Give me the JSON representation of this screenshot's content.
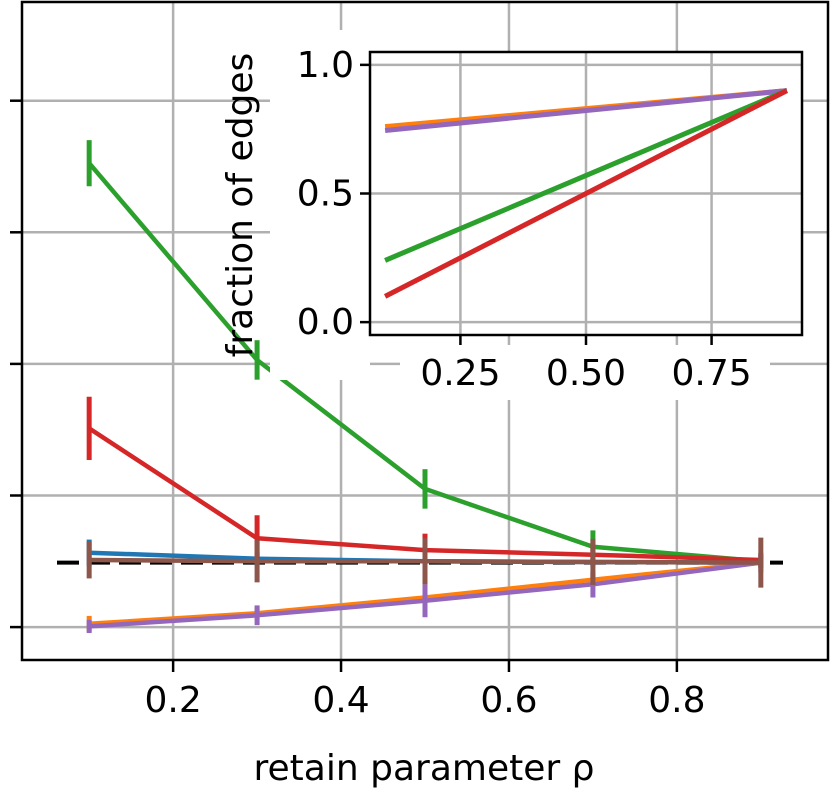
{
  "chart_data": [
    {
      "type": "line",
      "xlabel": "retain parameter ρ",
      "ylabel": "",
      "xlim": [
        0.02,
        0.98
      ],
      "ylim": [
        0.0,
        1.0
      ],
      "xticks": [
        0.2,
        0.4,
        0.6,
        0.8
      ],
      "xtick_labels": [
        "0.2",
        "0.4",
        "0.6",
        "0.8"
      ],
      "yticks": [
        0.05,
        0.25,
        0.45,
        0.65,
        0.85,
        1.05
      ],
      "ytick_labels": [
        "",
        "",
        "",
        "",
        "",
        ""
      ],
      "grid": true,
      "reference_line": {
        "style": "dashed",
        "color": "#000000",
        "y": 0.148
      },
      "series": [
        {
          "color": "#1f77b4",
          "x": [
            0.1,
            0.3,
            0.5,
            0.7,
            0.9
          ],
          "y": [
            0.163,
            0.154,
            0.15,
            0.149,
            0.148
          ],
          "err": [
            0.02,
            0.01,
            0.007,
            0.005,
            0.004
          ]
        },
        {
          "color": "#ff7f0e",
          "x": [
            0.1,
            0.3,
            0.5,
            0.7,
            0.9
          ],
          "y": [
            0.055,
            0.071,
            0.095,
            0.122,
            0.148
          ],
          "err": [
            0.012,
            0.01,
            0.01,
            0.01,
            0.008
          ]
        },
        {
          "color": "#2ca02c",
          "x": [
            0.1,
            0.3,
            0.5,
            0.7,
            0.9
          ],
          "y": [
            0.755,
            0.456,
            0.26,
            0.172,
            0.15
          ],
          "err": [
            0.035,
            0.03,
            0.03,
            0.025,
            0.01
          ]
        },
        {
          "color": "#d62728",
          "x": [
            0.1,
            0.3,
            0.5,
            0.7,
            0.9
          ],
          "y": [
            0.352,
            0.185,
            0.167,
            0.16,
            0.152
          ],
          "err": [
            0.048,
            0.035,
            0.025,
            0.018,
            0.01
          ]
        },
        {
          "color": "#9467bd",
          "x": [
            0.1,
            0.3,
            0.5,
            0.7,
            0.9
          ],
          "y": [
            0.051,
            0.068,
            0.09,
            0.115,
            0.148
          ],
          "err": [
            0.01,
            0.015,
            0.025,
            0.02,
            0.015
          ]
        },
        {
          "color": "#8c564b",
          "x": [
            0.1,
            0.3,
            0.5,
            0.7,
            0.9
          ],
          "y": [
            0.152,
            0.15,
            0.15,
            0.149,
            0.148
          ],
          "err": [
            0.028,
            0.032,
            0.035,
            0.035,
            0.038
          ]
        }
      ]
    },
    {
      "type": "line",
      "xlabel": "",
      "ylabel": "fraction of edges",
      "xlim": [
        0.07,
        0.93
      ],
      "ylim": [
        -0.05,
        1.05
      ],
      "xticks": [
        0.25,
        0.5,
        0.75
      ],
      "xtick_labels": [
        "0.25",
        "0.50",
        "0.75"
      ],
      "yticks": [
        0.0,
        0.5,
        1.0
      ],
      "ytick_labels": [
        "0.0",
        "0.5",
        "1.0"
      ],
      "grid": true,
      "series": [
        {
          "color": "#ff7f0e",
          "x": [
            0.1,
            0.9
          ],
          "y": [
            0.76,
            0.9
          ]
        },
        {
          "color": "#9467bd",
          "x": [
            0.1,
            0.9
          ],
          "y": [
            0.745,
            0.9
          ]
        },
        {
          "color": "#2ca02c",
          "x": [
            0.1,
            0.9
          ],
          "y": [
            0.24,
            0.9
          ]
        },
        {
          "color": "#d62728",
          "x": [
            0.1,
            0.9
          ],
          "y": [
            0.1,
            0.9
          ]
        }
      ]
    }
  ]
}
